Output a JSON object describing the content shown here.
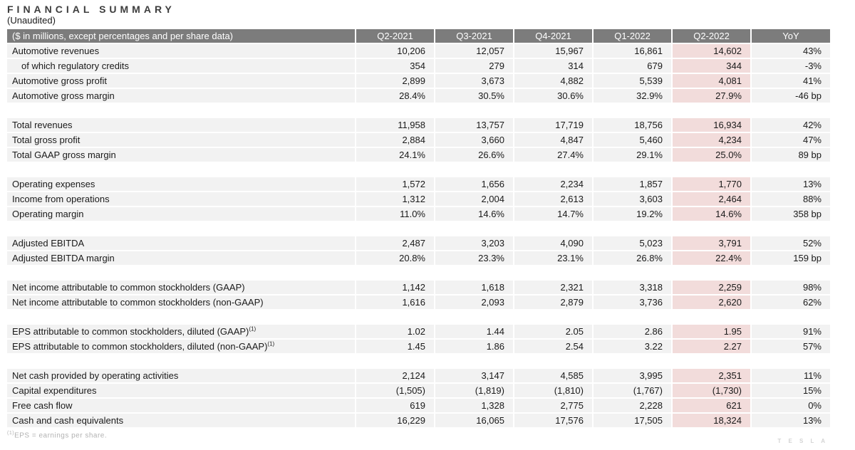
{
  "page": {
    "title": "FINANCIAL SUMMARY",
    "subtitle": "(Unaudited)",
    "footnote_sup": "(1)",
    "footnote_text": "EPS = earnings per share.",
    "watermark": "T E S L A"
  },
  "colors": {
    "header_bg": "#7c7c7c",
    "header_text": "#ffffff",
    "row_bg": "#f2f2f2",
    "highlight_column_bg": "#f2dcdb",
    "body_text": "#1a1a1a",
    "footnote_text": "#b2b2b2",
    "watermark_text": "#d4d4d4"
  },
  "table": {
    "label_header": "($ in millions, except percentages and per share data)",
    "columns": [
      "Q2-2021",
      "Q3-2021",
      "Q4-2021",
      "Q1-2022",
      "Q2-2022",
      "YoY"
    ],
    "highlight_column": "Q2-2022",
    "groups": [
      {
        "rows": [
          {
            "label": "Automotive revenues",
            "values": [
              "10,206",
              "12,057",
              "15,967",
              "16,861",
              "14,602",
              "43%"
            ]
          },
          {
            "label": "of which regulatory credits",
            "indent": true,
            "values": [
              "354",
              "279",
              "314",
              "679",
              "344",
              "-3%"
            ]
          },
          {
            "label": "Automotive gross profit",
            "values": [
              "2,899",
              "3,673",
              "4,882",
              "5,539",
              "4,081",
              "41%"
            ]
          },
          {
            "label": "Automotive gross margin",
            "values": [
              "28.4%",
              "30.5%",
              "30.6%",
              "32.9%",
              "27.9%",
              "-46 bp"
            ]
          }
        ]
      },
      {
        "rows": [
          {
            "label": "Total revenues",
            "values": [
              "11,958",
              "13,757",
              "17,719",
              "18,756",
              "16,934",
              "42%"
            ]
          },
          {
            "label": "Total gross profit",
            "values": [
              "2,884",
              "3,660",
              "4,847",
              "5,460",
              "4,234",
              "47%"
            ]
          },
          {
            "label": "Total GAAP gross margin",
            "values": [
              "24.1%",
              "26.6%",
              "27.4%",
              "29.1%",
              "25.0%",
              "89 bp"
            ]
          }
        ]
      },
      {
        "rows": [
          {
            "label": "Operating expenses",
            "values": [
              "1,572",
              "1,656",
              "2,234",
              "1,857",
              "1,770",
              "13%"
            ]
          },
          {
            "label": "Income from operations",
            "values": [
              "1,312",
              "2,004",
              "2,613",
              "3,603",
              "2,464",
              "88%"
            ]
          },
          {
            "label": "Operating margin",
            "values": [
              "11.0%",
              "14.6%",
              "14.7%",
              "19.2%",
              "14.6%",
              "358 bp"
            ]
          }
        ]
      },
      {
        "rows": [
          {
            "label": "Adjusted EBITDA",
            "values": [
              "2,487",
              "3,203",
              "4,090",
              "5,023",
              "3,791",
              "52%"
            ]
          },
          {
            "label": "Adjusted EBITDA margin",
            "values": [
              "20.8%",
              "23.3%",
              "23.1%",
              "26.8%",
              "22.4%",
              "159 bp"
            ]
          }
        ]
      },
      {
        "rows": [
          {
            "label": "Net income attributable to common stockholders (GAAP)",
            "values": [
              "1,142",
              "1,618",
              "2,321",
              "3,318",
              "2,259",
              "98%"
            ]
          },
          {
            "label": "Net income attributable to common stockholders (non-GAAP)",
            "values": [
              "1,616",
              "2,093",
              "2,879",
              "3,736",
              "2,620",
              "62%"
            ]
          }
        ]
      },
      {
        "rows": [
          {
            "label": "EPS attributable to common stockholders, diluted (GAAP)",
            "sup": "(1)",
            "values": [
              "1.02",
              "1.44",
              "2.05",
              "2.86",
              "1.95",
              "91%"
            ]
          },
          {
            "label": "EPS attributable to common stockholders, diluted (non-GAAP)",
            "sup": "(1)",
            "values": [
              "1.45",
              "1.86",
              "2.54",
              "3.22",
              "2.27",
              "57%"
            ]
          }
        ]
      },
      {
        "rows": [
          {
            "label": "Net cash provided by operating activities",
            "values": [
              "2,124",
              "3,147",
              "4,585",
              "3,995",
              "2,351",
              "11%"
            ]
          },
          {
            "label": "Capital expenditures",
            "values": [
              "(1,505)",
              "(1,819)",
              "(1,810)",
              "(1,767)",
              "(1,730)",
              "15%"
            ]
          },
          {
            "label": "Free cash flow",
            "values": [
              "619",
              "1,328",
              "2,775",
              "2,228",
              "621",
              "0%"
            ]
          },
          {
            "label": "Cash and cash equivalents",
            "values": [
              "16,229",
              "16,065",
              "17,576",
              "17,505",
              "18,324",
              "13%"
            ]
          }
        ]
      }
    ]
  }
}
